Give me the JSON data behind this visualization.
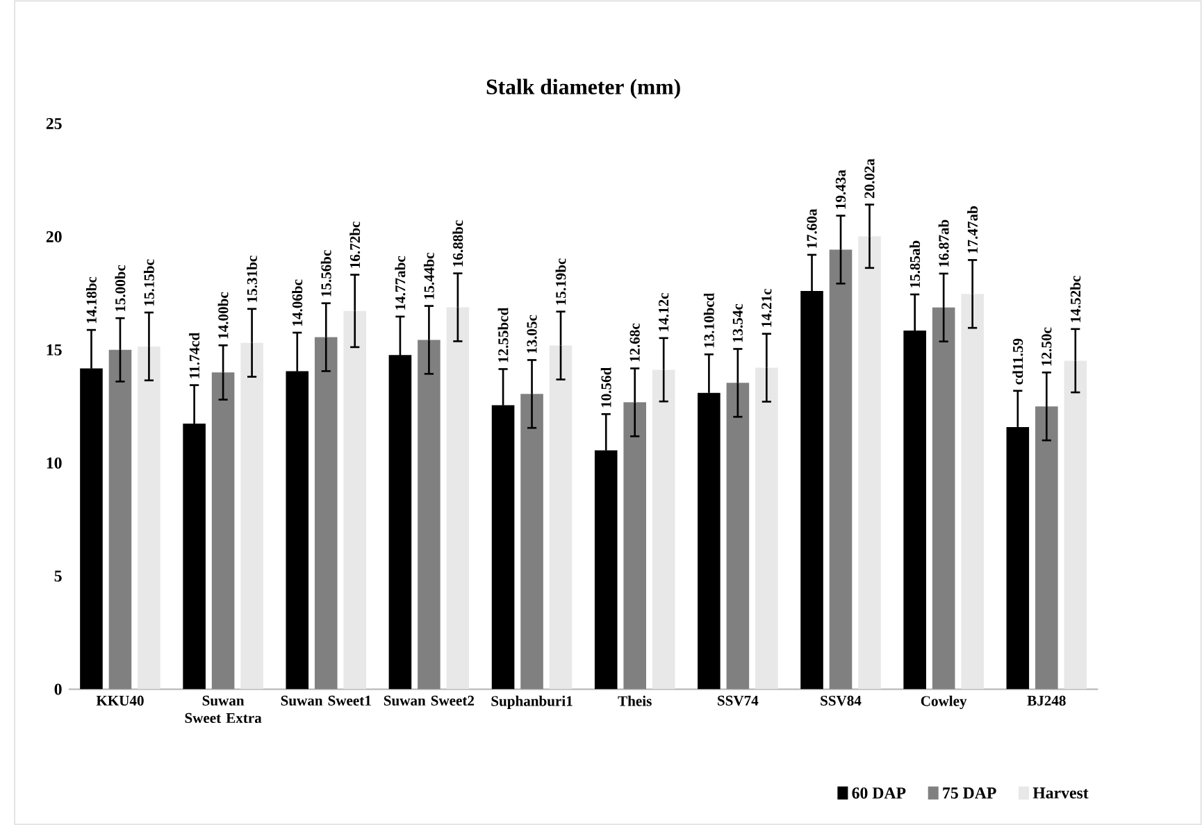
{
  "chart_data": {
    "type": "bar",
    "title": "Stalk diameter (mm)",
    "categories": [
      "KKU40",
      "Suwan Sweet Extra",
      "Suwan Sweet1",
      "Suwan Sweet2",
      "Suphanburi1",
      "Theis",
      "SSV74",
      "SSV84",
      "Cowley",
      "BJ248"
    ],
    "series": [
      {
        "name": "60 DAP",
        "color": "#000000",
        "values": [
          14.18,
          11.74,
          14.06,
          14.77,
          12.55,
          10.56,
          13.1,
          17.6,
          15.85,
          11.59
        ],
        "errors": [
          1.7,
          1.7,
          1.7,
          1.7,
          1.6,
          1.6,
          1.7,
          1.6,
          1.6,
          1.6
        ],
        "value_labels": [
          "14.18bc",
          "11.74cd",
          "14.06bc",
          "14.77abc",
          "12.55bcd",
          "10.56d",
          "13.10bcd",
          "17.60a",
          "15.85ab",
          "cd11.59"
        ]
      },
      {
        "name": "75 DAP",
        "color": "#808080",
        "values": [
          15.0,
          14.0,
          15.56,
          15.44,
          13.05,
          12.68,
          13.54,
          19.43,
          16.87,
          12.5
        ],
        "errors": [
          1.4,
          1.2,
          1.5,
          1.5,
          1.5,
          1.5,
          1.5,
          1.5,
          1.5,
          1.5
        ],
        "value_labels": [
          "15.00bc",
          "14.00bc",
          "15.56bc",
          "15.44bc",
          "13.05c",
          "12.68c",
          "13.54c",
          "19.43a",
          "16.87ab",
          "12.50c"
        ]
      },
      {
        "name": "Harvest",
        "color": "#e8e8e8",
        "values": [
          15.15,
          15.31,
          16.72,
          16.88,
          15.19,
          14.12,
          14.21,
          20.02,
          17.47,
          14.52
        ],
        "errors": [
          1.5,
          1.5,
          1.6,
          1.5,
          1.5,
          1.4,
          1.5,
          1.4,
          1.5,
          1.4
        ],
        "value_labels": [
          "15.15bc",
          "15.31bc",
          "16.72bc",
          "16.88bc",
          "15.19bc",
          "14.12c",
          "14.21c",
          "20.02a",
          "17.47ab",
          "14.52bc"
        ]
      }
    ],
    "ylim": [
      0,
      25
    ],
    "yticks": [
      0,
      5,
      10,
      15,
      20,
      25
    ],
    "grid": false,
    "legend": "bottom right"
  }
}
